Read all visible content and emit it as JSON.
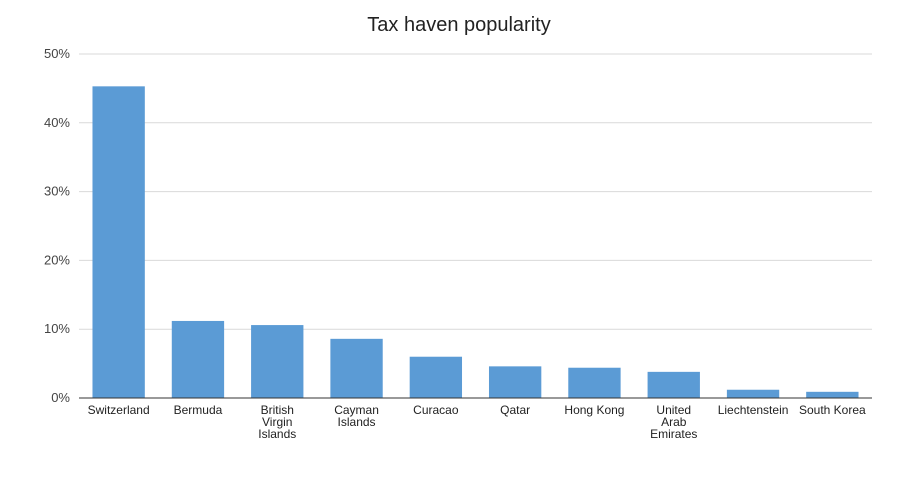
{
  "chart_data": {
    "type": "bar",
    "title": "Tax haven popularity",
    "xlabel": "",
    "ylabel": "",
    "categories": [
      "Switzerland",
      "Bermuda",
      "British Virgin Islands",
      "Cayman Islands",
      "Curacao",
      "Qatar",
      "Hong Kong",
      "United Arab Emirates",
      "Liechtenstein",
      "South Korea"
    ],
    "category_label_lines": [
      [
        "Switzerland"
      ],
      [
        "Bermuda"
      ],
      [
        "British",
        "Virgin",
        "Islands"
      ],
      [
        "Cayman",
        "Islands"
      ],
      [
        "Curacao"
      ],
      [
        "Qatar"
      ],
      [
        "Hong Kong"
      ],
      [
        "United",
        "Arab",
        "Emirates"
      ],
      [
        "Liechtenstein"
      ],
      [
        "South Korea"
      ]
    ],
    "values": [
      45.3,
      11.2,
      10.6,
      8.6,
      6.0,
      4.6,
      4.4,
      3.8,
      1.2,
      0.9
    ],
    "ylim": [
      0,
      50
    ],
    "yticks": [
      0,
      10,
      20,
      30,
      40,
      50
    ],
    "ytick_labels": [
      "0%",
      "10%",
      "20%",
      "30%",
      "40%",
      "50%"
    ],
    "grid": true,
    "legend": "none",
    "colors": {
      "bar": "#5b9bd5",
      "grid": "#d9d9d9",
      "axis": "#333333"
    }
  }
}
